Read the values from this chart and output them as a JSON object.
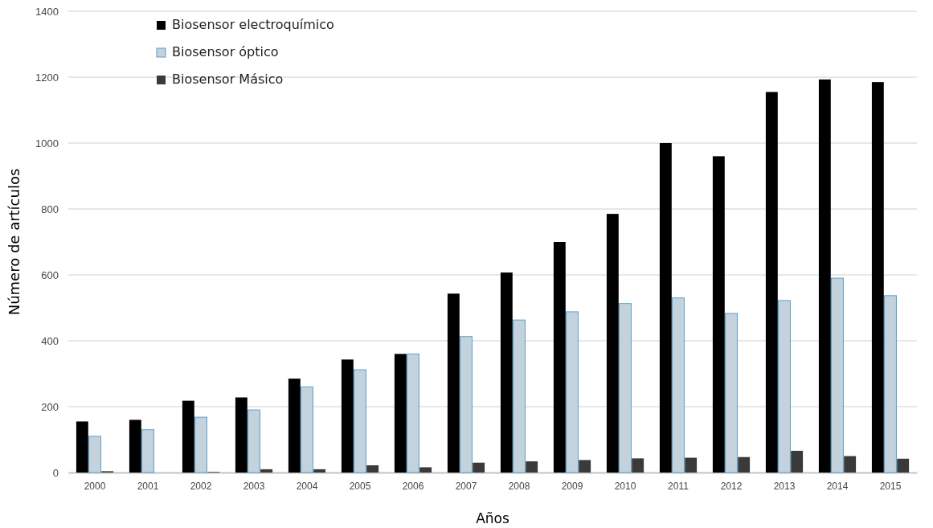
{
  "chart_data": {
    "type": "bar",
    "xlabel": "Años",
    "ylabel": "Número de artículos",
    "categories": [
      "2000",
      "2001",
      "2002",
      "2003",
      "2004",
      "2005",
      "2006",
      "2007",
      "2008",
      "2009",
      "2010",
      "2011",
      "2012",
      "2013",
      "2014",
      "2015"
    ],
    "series": [
      {
        "name": "Biosensor electroquímico",
        "color": "#000000",
        "values": [
          155,
          160,
          218,
          228,
          285,
          343,
          360,
          543,
          607,
          700,
          785,
          1000,
          960,
          1155,
          1193,
          1185
        ]
      },
      {
        "name": "Biosensor óptico",
        "color": "#c4d2de",
        "values": [
          110,
          130,
          168,
          190,
          260,
          312,
          360,
          413,
          463,
          488,
          513,
          530,
          483,
          522,
          590,
          537
        ]
      },
      {
        "name": "Biosensor Másico",
        "color": "#3a3a3a",
        "values": [
          4,
          null,
          2,
          10,
          10,
          22,
          16,
          30,
          34,
          38,
          43,
          45,
          47,
          66,
          50,
          42
        ]
      }
    ],
    "ylim": [
      0,
      1400
    ],
    "yticks": [
      0,
      200,
      400,
      600,
      800,
      1000,
      1200,
      1400
    ],
    "grid": "y",
    "legend": "top left"
  }
}
